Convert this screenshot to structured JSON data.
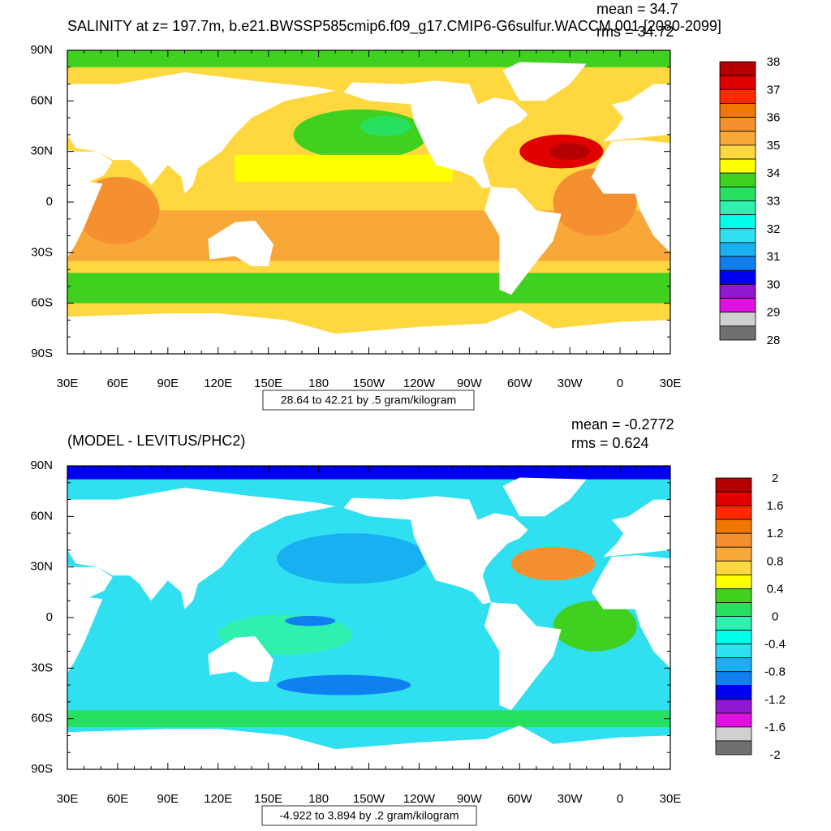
{
  "panels": [
    {
      "title": "SALINITY at z= 197.7m, b.e21.BWSSP585cmip6.f09_g17.CMIP6-G6sulfur.WACCM.001 [2080-2099]",
      "mean": "mean = 34.7",
      "rms": "rms = 34.72",
      "lat_labels": [
        "90N",
        "60N",
        "30N",
        "0",
        "30S",
        "60S",
        "90S"
      ],
      "lon_labels": [
        "30E",
        "60E",
        "90E",
        "120E",
        "150E",
        "180",
        "150W",
        "120W",
        "90W",
        "60W",
        "30W",
        "0",
        "30E"
      ],
      "colorbar": {
        "labels": [
          "38",
          "37",
          "36",
          "35",
          "34",
          "33",
          "32",
          "31",
          "30",
          "29",
          "28"
        ],
        "colors": [
          "#b40000",
          "#e00000",
          "#ff2a00",
          "#f07800",
          "#f59030",
          "#f8a838",
          "#ffd840",
          "#ffff00",
          "#40d020",
          "#28e060",
          "#30f0b0",
          "#00ffe8",
          "#30e0f0",
          "#18b0f0",
          "#1080f0",
          "#0000f0",
          "#9018d0",
          "#e010e0",
          "#d0d0d0",
          "#707070"
        ]
      },
      "range_note": "28.64 to 42.21 by .5 gram/kilogram"
    },
    {
      "title": "(MODEL - LEVITUS/PHC2)",
      "mean": "mean = -0.2772",
      "rms": "rms = 0.624",
      "lat_labels": [
        "90N",
        "60N",
        "30N",
        "0",
        "30S",
        "60S",
        "90S"
      ],
      "lon_labels": [
        "30E",
        "60E",
        "90E",
        "120E",
        "150E",
        "180",
        "150W",
        "120W",
        "90W",
        "60W",
        "30W",
        "0",
        "30E"
      ],
      "colorbar": {
        "labels": [
          "2",
          "1.6",
          "1.2",
          "0.8",
          "0.4",
          "0",
          "-0.4",
          "-0.8",
          "-1.2",
          "-1.6",
          "-2"
        ],
        "colors": [
          "#b40000",
          "#e00000",
          "#ff2a00",
          "#f07800",
          "#f59030",
          "#f8a838",
          "#ffd840",
          "#ffff00",
          "#40d020",
          "#28e060",
          "#30f0b0",
          "#00ffe8",
          "#30e0f0",
          "#18b0f0",
          "#1080f0",
          "#0000f0",
          "#9018d0",
          "#e010e0",
          "#d0d0d0",
          "#707070"
        ]
      },
      "range_note": "-4.922 to 3.894 by .2 gram/kilogram"
    }
  ]
}
